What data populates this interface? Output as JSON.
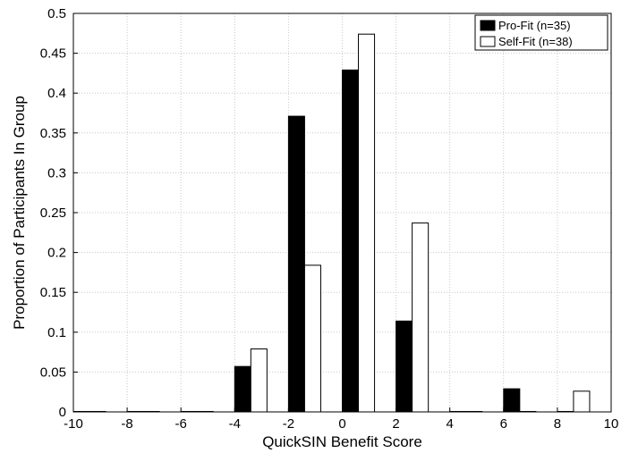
{
  "chart_data": {
    "type": "bar",
    "xlabel": "QuickSIN Benefit Score",
    "ylabel": "Proportion of Participants In Group",
    "xlim": [
      -10,
      10
    ],
    "ylim": [
      0,
      0.5
    ],
    "xticks": [
      "-10",
      "-8",
      "-6",
      "-4",
      "-2",
      "0",
      "2",
      "4",
      "6",
      "8",
      "10"
    ],
    "yticks": [
      "0",
      "0.05",
      "0.1",
      "0.15",
      "0.2",
      "0.25",
      "0.3",
      "0.35",
      "0.4",
      "0.45",
      "0.5"
    ],
    "grid": true,
    "legend_position": "top-right",
    "x": [
      -10,
      -8,
      -6,
      -4,
      -2,
      0,
      2,
      4,
      6,
      8
    ],
    "series": [
      {
        "name": "Pro-Fit (n=35)",
        "color": "#000000",
        "values": [
          0,
          0,
          0,
          0.057,
          0.371,
          0.429,
          0.114,
          0,
          0.029,
          0
        ]
      },
      {
        "name": "Self-Fit (n=38)",
        "color": "#ffffff",
        "values": [
          0,
          0,
          0,
          0.079,
          0.184,
          0.474,
          0.237,
          0,
          0,
          0.026
        ]
      }
    ]
  }
}
